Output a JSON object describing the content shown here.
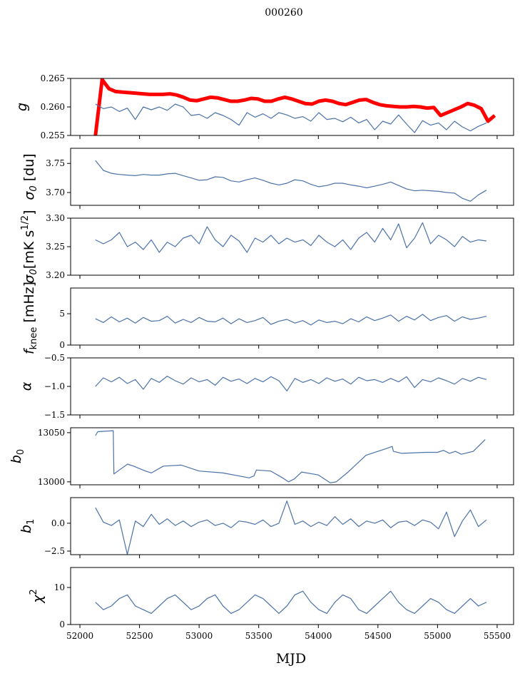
{
  "chart_data": {
    "type": "line",
    "title": "000260",
    "xlabel": "MJD",
    "xlim": [
      51922,
      55638
    ],
    "xticks": [
      52000,
      52500,
      53000,
      53500,
      54000,
      54500,
      55000,
      55500
    ],
    "xtick_labels": [
      "52000",
      "52500",
      "53000",
      "53500",
      "54000",
      "54500",
      "55000",
      "55500"
    ],
    "panels": [
      {
        "name": "g",
        "ylabel_parts": [
          {
            "t": "g"
          }
        ],
        "ylim": [
          0.255,
          0.265
        ],
        "yticks": [
          0.255,
          0.26,
          0.265
        ],
        "ytick_labels": [
          "0.255",
          "0.260",
          "0.265"
        ],
        "series": [
          {
            "name": "g-red",
            "color": "#ff0000",
            "width": 5,
            "x_start": 52130,
            "x_end": 55480,
            "values": [
              0.255,
              0.2648,
              0.2632,
              0.2627,
              0.2626,
              0.2625,
              0.2624,
              0.2623,
              0.2622,
              0.2622,
              0.2622,
              0.2623,
              0.2621,
              0.2617,
              0.2612,
              0.2611,
              0.2614,
              0.2617,
              0.2616,
              0.2613,
              0.261,
              0.261,
              0.2612,
              0.2615,
              0.2614,
              0.261,
              0.261,
              0.2614,
              0.2617,
              0.2614,
              0.261,
              0.2606,
              0.2605,
              0.261,
              0.2612,
              0.261,
              0.2606,
              0.2604,
              0.2608,
              0.2612,
              0.2613,
              0.2608,
              0.2604,
              0.2602,
              0.2601,
              0.26,
              0.26,
              0.2601,
              0.26,
              0.2598,
              0.2599,
              0.2585,
              0.259,
              0.2595,
              0.26,
              0.2606,
              0.2603,
              0.2597,
              0.2575,
              0.2585
            ]
          },
          {
            "name": "g-blue",
            "color": "#4c72a8",
            "width": 1.2,
            "x_start": 52130,
            "x_end": 55410,
            "values": [
              0.2605,
              0.2597,
              0.26,
              0.2592,
              0.2598,
              0.2578,
              0.26,
              0.2595,
              0.26,
              0.2594,
              0.2605,
              0.26,
              0.2585,
              0.2587,
              0.258,
              0.259,
              0.2585,
              0.2578,
              0.2568,
              0.259,
              0.2582,
              0.2588,
              0.258,
              0.259,
              0.2586,
              0.258,
              0.2583,
              0.2575,
              0.259,
              0.2578,
              0.258,
              0.2574,
              0.2582,
              0.2572,
              0.2578,
              0.256,
              0.2575,
              0.257,
              0.2586,
              0.257,
              0.2555,
              0.2576,
              0.2568,
              0.2572,
              0.256,
              0.2575,
              0.2565,
              0.2558,
              0.2566,
              0.2572
            ]
          }
        ]
      },
      {
        "name": "sigma0-du",
        "ylabel_parts": [
          {
            "t": "σ"
          },
          {
            "t": "0",
            "sub": true
          },
          {
            "t": " [du]",
            "roman": true
          }
        ],
        "ylim": [
          3.678,
          3.776
        ],
        "yticks": [
          3.7,
          3.75
        ],
        "ytick_labels": [
          "3.70",
          "3.75"
        ],
        "series": [
          {
            "name": "sigma0-du",
            "color": "#4c72a8",
            "width": 1.2,
            "x_start": 52130,
            "x_end": 55410,
            "values": [
              3.755,
              3.738,
              3.733,
              3.731,
              3.73,
              3.729,
              3.731,
              3.73,
              3.73,
              3.732,
              3.733,
              3.729,
              3.725,
              3.721,
              3.722,
              3.727,
              3.726,
              3.72,
              3.718,
              3.722,
              3.725,
              3.721,
              3.716,
              3.713,
              3.716,
              3.722,
              3.72,
              3.714,
              3.71,
              3.712,
              3.716,
              3.716,
              3.713,
              3.711,
              3.708,
              3.711,
              3.714,
              3.718,
              3.712,
              3.706,
              3.703,
              3.704,
              3.703,
              3.702,
              3.7,
              3.699,
              3.69,
              3.685,
              3.696,
              3.704
            ]
          }
        ]
      },
      {
        "name": "sigma0-mk",
        "ylabel_parts": [
          {
            "t": "σ"
          },
          {
            "t": "0",
            "sub": true
          },
          {
            "t": "[mK s",
            "roman": true
          },
          {
            "t": "1/2",
            "sup": true,
            "roman": true
          },
          {
            "t": "]",
            "roman": true
          }
        ],
        "ylim": [
          3.2,
          3.3
        ],
        "yticks": [
          3.2,
          3.25,
          3.3
        ],
        "ytick_labels": [
          "3.20",
          "3.25",
          "3.30"
        ],
        "series": [
          {
            "name": "sigma0-mk",
            "color": "#4c72a8",
            "width": 1.2,
            "x_start": 52130,
            "x_end": 55410,
            "values": [
              3.262,
              3.255,
              3.262,
              3.275,
              3.25,
              3.258,
              3.245,
              3.262,
              3.24,
              3.258,
              3.25,
              3.265,
              3.27,
              3.255,
              3.285,
              3.262,
              3.25,
              3.27,
              3.26,
              3.24,
              3.265,
              3.258,
              3.27,
              3.255,
              3.265,
              3.258,
              3.262,
              3.252,
              3.27,
              3.258,
              3.25,
              3.262,
              3.245,
              3.265,
              3.275,
              3.258,
              3.282,
              3.262,
              3.29,
              3.248,
              3.265,
              3.292,
              3.255,
              3.27,
              3.262,
              3.25,
              3.268,
              3.258,
              3.262,
              3.26
            ]
          }
        ]
      },
      {
        "name": "fknee",
        "ylabel_parts": [
          {
            "t": "f"
          },
          {
            "t": "knee",
            "sub": true,
            "roman": true
          },
          {
            "t": " [mHz]",
            "roman": true
          }
        ],
        "ylim": [
          0,
          9.1
        ],
        "yticks": [
          0,
          5
        ],
        "ytick_labels": [
          "0",
          "5"
        ],
        "series": [
          {
            "name": "fknee",
            "color": "#4c72a8",
            "width": 1.2,
            "x_start": 52130,
            "x_end": 55410,
            "values": [
              4.2,
              3.6,
              4.5,
              3.7,
              4.3,
              3.5,
              4.4,
              3.8,
              3.9,
              4.6,
              3.5,
              4.1,
              3.6,
              4.4,
              3.8,
              3.7,
              4.3,
              3.4,
              4.2,
              3.6,
              3.9,
              4.4,
              3.3,
              3.8,
              4.1,
              3.5,
              3.9,
              3.2,
              4.0,
              3.6,
              3.8,
              3.4,
              4.2,
              3.7,
              4.5,
              3.9,
              4.3,
              4.8,
              3.8,
              4.6,
              4.0,
              4.9,
              3.9,
              4.4,
              4.7,
              3.8,
              4.5,
              4.1,
              4.3,
              4.6
            ]
          }
        ]
      },
      {
        "name": "alpha",
        "ylabel_parts": [
          {
            "t": "α"
          }
        ],
        "ylim": [
          -1.5,
          -0.5
        ],
        "yticks": [
          -1.5,
          -1.0,
          -0.5
        ],
        "ytick_labels": [
          "−1.5",
          "−1.0",
          "−0.5"
        ],
        "series": [
          {
            "name": "alpha",
            "color": "#4c72a8",
            "width": 1.2,
            "x_start": 52130,
            "x_end": 55410,
            "values": [
              -1.0,
              -0.85,
              -0.92,
              -0.84,
              -0.95,
              -0.88,
              -1.05,
              -0.86,
              -0.93,
              -0.82,
              -0.9,
              -0.96,
              -0.85,
              -0.92,
              -0.88,
              -0.98,
              -0.84,
              -0.91,
              -0.87,
              -0.95,
              -0.86,
              -0.92,
              -0.83,
              -0.9,
              -1.08,
              -0.86,
              -0.93,
              -0.88,
              -0.95,
              -0.85,
              -0.91,
              -0.87,
              -0.96,
              -0.84,
              -0.9,
              -0.88,
              -0.93,
              -0.86,
              -0.92,
              -0.83,
              -1.02,
              -0.88,
              -0.92,
              -0.85,
              -0.9,
              -0.96,
              -0.86,
              -0.91,
              -0.84,
              -0.88
            ]
          }
        ]
      },
      {
        "name": "b0",
        "ylabel_parts": [
          {
            "t": "b"
          },
          {
            "t": "0",
            "sub": true,
            "roman": true
          }
        ],
        "ylim": [
          12997,
          13055
        ],
        "yticks": [
          13000,
          13050
        ],
        "ytick_labels": [
          "13000",
          "13050"
        ],
        "series": [
          {
            "name": "b0",
            "color": "#4c72a8",
            "width": 1.2,
            "x": [
              52130,
              52150,
              52280,
              52285,
              52330,
              52400,
              52450,
              52550,
              52600,
              52700,
              52850,
              53000,
              53200,
              53420,
              53460,
              53480,
              53600,
              53700,
              53750,
              53800,
              53860,
              54000,
              54100,
              54150,
              54250,
              54400,
              54550,
              54620,
              54630,
              54700,
              54900,
              55000,
              55050,
              55100,
              55150,
              55200,
              55300,
              55400
            ],
            "values": [
              13047,
              13051,
              13052,
              13008,
              13012,
              13018,
              13016,
              13011,
              13009,
              13016,
              13017,
              13011,
              13009,
              13004,
              13006,
              13012,
              13011,
              13004,
              13000,
              13003,
              13010,
              13007,
              12999,
              13000,
              13010,
              13027,
              13033,
              13036,
              13031,
              13029,
              13030,
              13030,
              13032,
              13029,
              13031,
              13028,
              13031,
              13043
            ]
          }
        ]
      },
      {
        "name": "b1",
        "ylabel_parts": [
          {
            "t": "b"
          },
          {
            "t": "1",
            "sub": true,
            "roman": true
          }
        ],
        "ylim": [
          -2.82,
          2.3
        ],
        "yticks": [
          -2.5,
          0.0
        ],
        "ytick_labels": [
          "−2.5",
          "0.0"
        ],
        "series": [
          {
            "name": "b1",
            "color": "#4c72a8",
            "width": 1.2,
            "x_start": 52130,
            "x_end": 55410,
            "values": [
              1.4,
              0.1,
              -0.2,
              0.3,
              -2.8,
              0.2,
              -0.3,
              0.8,
              -0.1,
              0.4,
              -0.2,
              0.2,
              -0.3,
              0.1,
              0.3,
              -0.2,
              0.0,
              -0.4,
              0.2,
              0.1,
              -0.1,
              0.3,
              -0.3,
              0.0,
              2.0,
              -0.1,
              0.2,
              -0.3,
              0.1,
              -0.2,
              0.6,
              -0.1,
              0.4,
              -0.3,
              0.2,
              0.0,
              0.3,
              -0.4,
              0.1,
              0.2,
              -0.2,
              0.3,
              0.1,
              -0.5,
              1.0,
              -1.2,
              0.2,
              1.2,
              -0.3,
              0.3
            ]
          }
        ]
      },
      {
        "name": "chi2",
        "ylabel_parts": [
          {
            "t": "χ"
          },
          {
            "t": "2",
            "sup": true,
            "roman": true
          }
        ],
        "ylim": [
          0,
          15.4
        ],
        "yticks": [
          0,
          10
        ],
        "ytick_labels": [
          "0",
          "10"
        ],
        "series": [
          {
            "name": "chi2",
            "color": "#4c72a8",
            "width": 1.2,
            "x_start": 52130,
            "x_end": 55410,
            "values": [
              6,
              4,
              5,
              7,
              8,
              5,
              4,
              3,
              5,
              7,
              8,
              6,
              4,
              5,
              7,
              8,
              5,
              3,
              4,
              6,
              8,
              7,
              5,
              3,
              5,
              8,
              9,
              6,
              4,
              3,
              6,
              8,
              7,
              4,
              3,
              5,
              7,
              9,
              6,
              4,
              3,
              5,
              7,
              6,
              4,
              3,
              5,
              7,
              5,
              6
            ]
          }
        ]
      }
    ]
  }
}
